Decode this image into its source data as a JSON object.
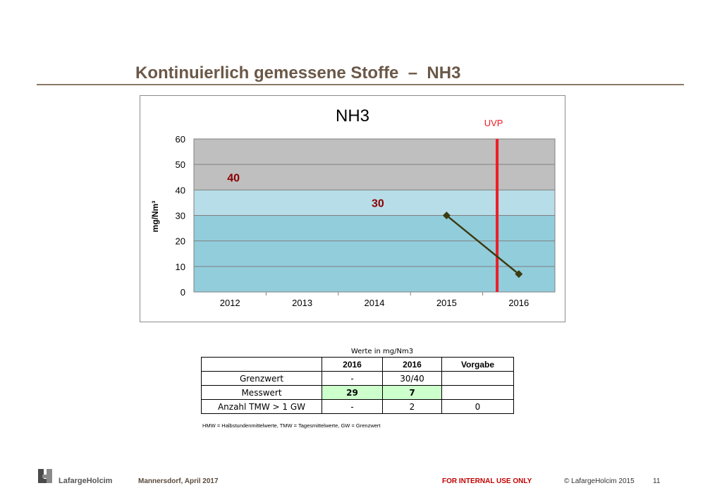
{
  "page": {
    "title": "Kontinuierlich gemessene Stoffe  –  NH3"
  },
  "chart_data": {
    "type": "line",
    "title": "NH3",
    "ylabel": "mg/Nm³",
    "xlabel": "",
    "categories": [
      "2012",
      "2013",
      "2014",
      "2015",
      "2016"
    ],
    "ylim": [
      0,
      60
    ],
    "yticks": [
      0,
      10,
      20,
      30,
      40,
      50,
      60
    ],
    "grid": true,
    "series": [
      {
        "x": [
          "2015",
          "2016"
        ],
        "values": [
          30,
          7
        ],
        "color": "#3b3b12"
      }
    ],
    "bands": [
      {
        "from": 0,
        "to": 30,
        "color": "#92cddc"
      },
      {
        "from": 30,
        "to": 40,
        "color": "#b7dde8"
      },
      {
        "from": 40,
        "to": 60,
        "color": "#bfbfbf"
      }
    ],
    "band_labels": [
      {
        "text": "40",
        "y": 45,
        "x_pos": "2012",
        "color": "#8b0000"
      },
      {
        "text": "30",
        "y": 35,
        "x_pos": "2014",
        "color": "#8b0000"
      }
    ],
    "vline": {
      "label": "UVP",
      "x_between": [
        "2015",
        "2016"
      ],
      "color": "#ee1c25"
    },
    "legend": "none"
  },
  "table": {
    "caption": "Werte in mg/Nm3",
    "header": [
      "",
      "2016",
      "2016",
      "Vorgabe"
    ],
    "rows": [
      [
        "Grenzwert",
        "-",
        "30/40",
        ""
      ],
      [
        "Messwert",
        "29",
        "7",
        ""
      ],
      [
        "Anzahl TMW > 1 GW",
        "-",
        "2",
        "0"
      ]
    ],
    "footnote": "HMW = Halbstundenmittelwerte, TMW = Tagesmittelwerte, GW = Grenzwert"
  },
  "footer": {
    "logo_text": "LafargeHolcim",
    "location": "Mannersdorf, April 2017",
    "confidential": "FOR INTERNAL USE ONLY",
    "copyright": "© LafargeHolcim 2015",
    "page_number": "11"
  },
  "colors": {
    "title": "#6b5848",
    "uvp": "#ee1c25",
    "band_label": "#8b0000",
    "highlight_cell": "#ccffcc"
  },
  "icons": [
    "lafargeholcim-logo-icon"
  ]
}
